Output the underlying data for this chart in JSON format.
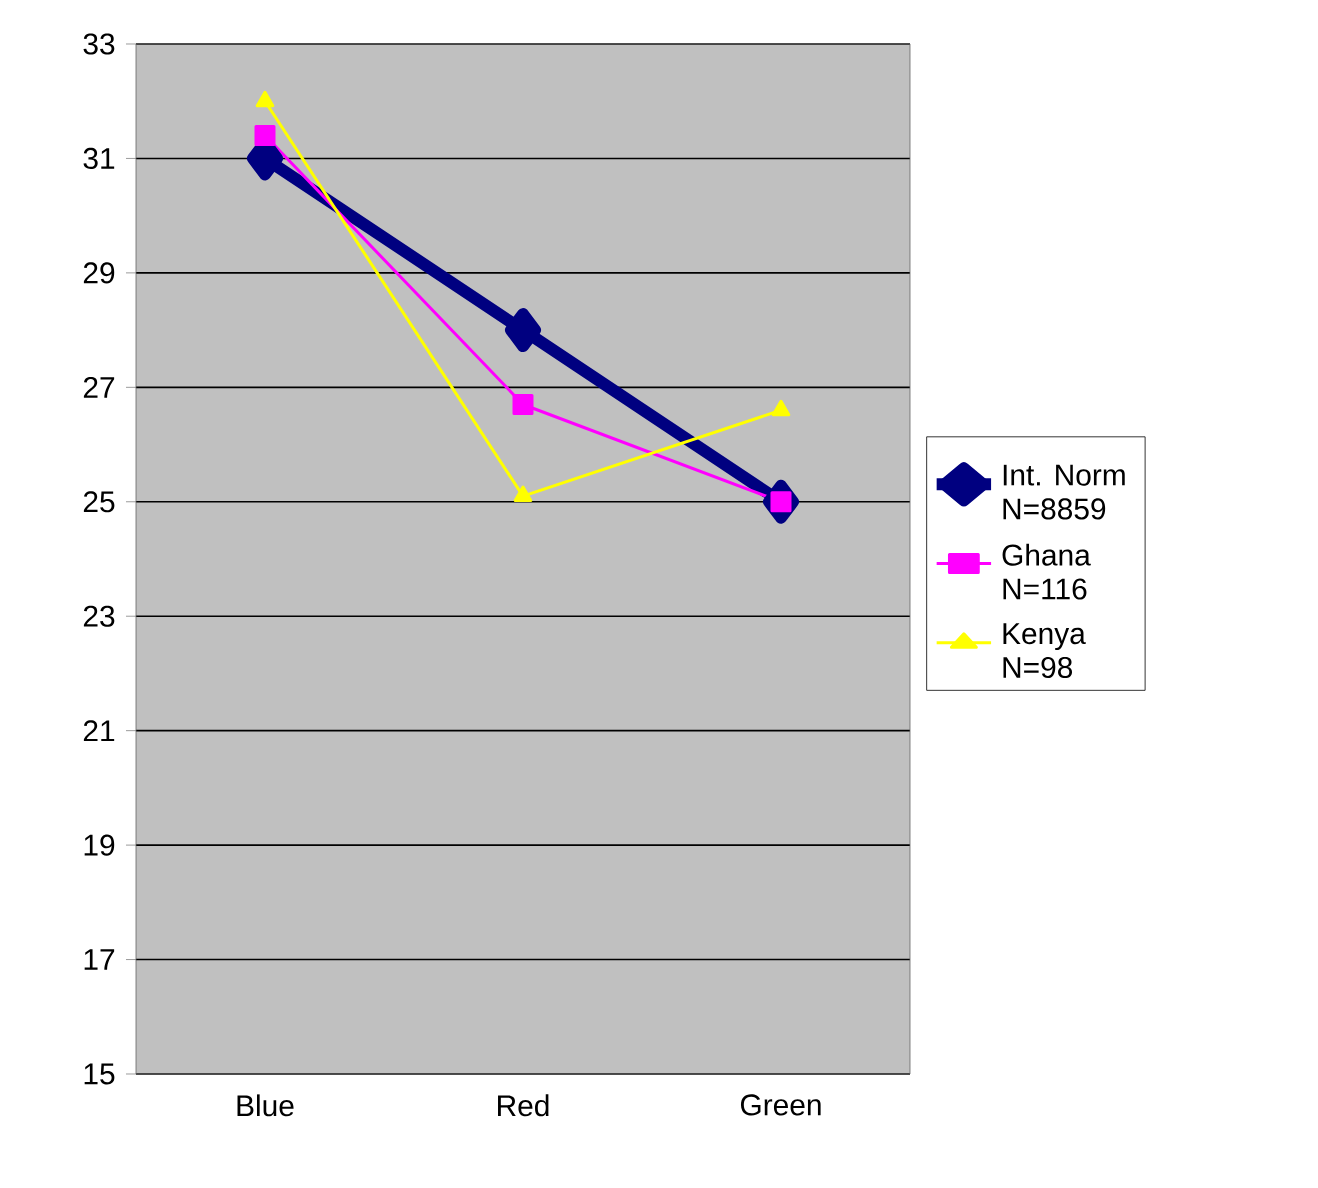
{
  "chart_data": {
    "type": "line",
    "categories": [
      "Blue",
      "Red",
      "Green"
    ],
    "series": [
      {
        "name": "Int. Norm N=8859",
        "color": "#000080",
        "marker": "diamond",
        "values": [
          31,
          28,
          25
        ]
      },
      {
        "name": "Ghana N=116",
        "color": "#ff00ff",
        "marker": "square",
        "values": [
          31.4,
          26.7,
          25
        ]
      },
      {
        "name": "Kenya N=98",
        "color": "#ffff00",
        "marker": "triangle",
        "values": [
          32,
          25.1,
          26.6
        ]
      }
    ],
    "ylim": [
      15,
      33
    ],
    "yticks": [
      15,
      17,
      19,
      21,
      23,
      25,
      27,
      29,
      31,
      33
    ],
    "grid": "y",
    "legend": "right"
  }
}
